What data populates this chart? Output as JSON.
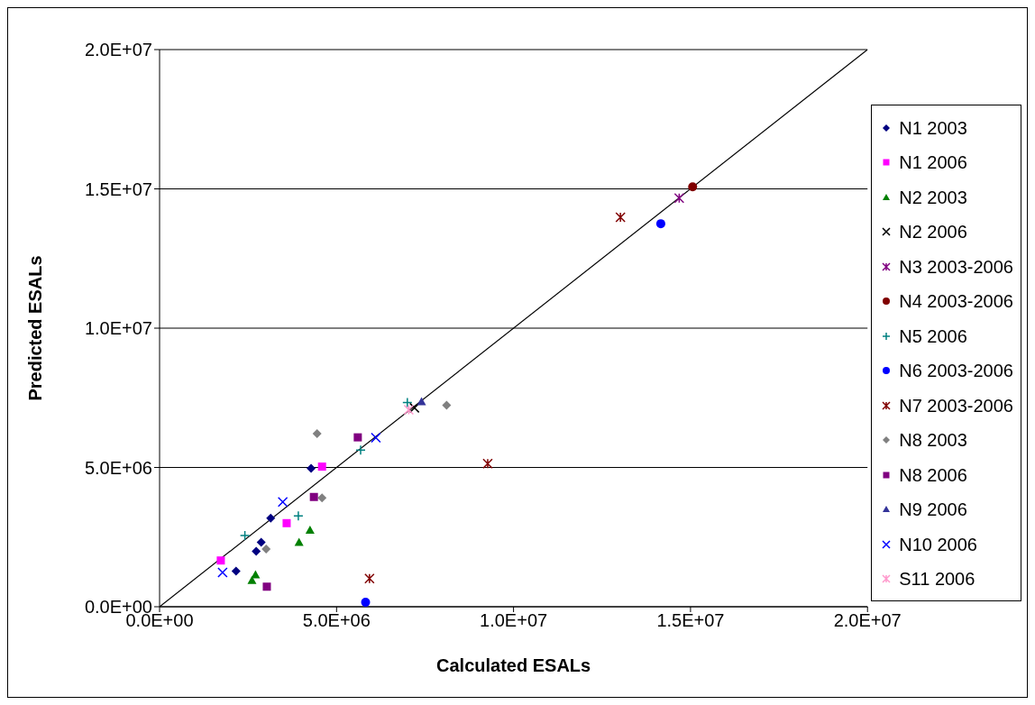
{
  "chart_data": {
    "type": "scatter",
    "xlabel": "Calculated ESALs",
    "ylabel": "Predicted ESALs",
    "xlim": [
      0,
      20000000
    ],
    "ylim": [
      0,
      20000000
    ],
    "xticks": [
      {
        "value": 0,
        "label": "0.0E+00"
      },
      {
        "value": 5000000,
        "label": "5.0E+06"
      },
      {
        "value": 10000000,
        "label": "1.0E+07"
      },
      {
        "value": 15000000,
        "label": "1.5E+07"
      },
      {
        "value": 20000000,
        "label": "2.0E+07"
      }
    ],
    "yticks": [
      {
        "value": 0,
        "label": "0.0E+00"
      },
      {
        "value": 5000000,
        "label": "5.0E+06"
      },
      {
        "value": 10000000,
        "label": "1.0E+07"
      },
      {
        "value": 15000000,
        "label": "1.5E+07"
      },
      {
        "value": 20000000,
        "label": "2.0E+07"
      }
    ],
    "grid": "y",
    "legend": "right",
    "series": [
      {
        "name": "N1 2003",
        "color": "#000080",
        "marker": "diamond",
        "x": [
          4280000,
          3140000,
          2870000,
          2730000,
          2160000
        ],
        "values": [
          4970000,
          3180000,
          2310000,
          1990000,
          1280000
        ]
      },
      {
        "name": "N1 2006",
        "color": "#ff00ff",
        "marker": "square",
        "x": [
          4590000,
          3590000,
          1730000
        ],
        "values": [
          5030000,
          3000000,
          1660000
        ]
      },
      {
        "name": "N2 2003",
        "color": "#008000",
        "marker": "triangle",
        "x": [
          4250000,
          3940000,
          2710000,
          2610000
        ],
        "values": [
          2750000,
          2310000,
          1150000,
          950000
        ]
      },
      {
        "name": "N2 2006",
        "color": "#000000",
        "marker": "x",
        "x": [
          7200000
        ],
        "values": [
          7140000
        ]
      },
      {
        "name": "N3 2003-2006",
        "color": "#800080",
        "marker": "cross",
        "x": [
          14680000
        ],
        "values": [
          14670000
        ]
      },
      {
        "name": "N4 2003-2006",
        "color": "#800000",
        "marker": "circle",
        "x": [
          15060000
        ],
        "values": [
          15070000
        ]
      },
      {
        "name": "N5 2006",
        "color": "#008080",
        "marker": "plus",
        "x": [
          5680000,
          3920000,
          2410000,
          7000000
        ],
        "values": [
          5620000,
          3260000,
          2560000,
          7330000
        ]
      },
      {
        "name": "N6 2003-2006",
        "color": "#0000ff",
        "marker": "circle",
        "x": [
          14160000,
          5820000
        ],
        "values": [
          13750000,
          160000
        ]
      },
      {
        "name": "N7 2003-2006",
        "color": "#800000",
        "marker": "cross",
        "x": [
          13020000,
          9270000,
          5930000
        ],
        "values": [
          13980000,
          5140000,
          1010000
        ]
      },
      {
        "name": "N8 2003",
        "color": "#808080",
        "marker": "diamond",
        "x": [
          4450000,
          8110000,
          4590000,
          3010000
        ],
        "values": [
          6210000,
          7230000,
          3910000,
          2070000
        ]
      },
      {
        "name": "N8 2006",
        "color": "#800080",
        "marker": "square",
        "x": [
          5600000,
          4360000,
          3030000
        ],
        "values": [
          6080000,
          3940000,
          720000
        ]
      },
      {
        "name": "N9 2006",
        "color": "#333399",
        "marker": "triangle",
        "x": [
          7400000
        ],
        "values": [
          7360000
        ]
      },
      {
        "name": "N10 2006",
        "color": "#0000ff",
        "marker": "x",
        "x": [
          6110000,
          3480000,
          1780000
        ],
        "values": [
          6070000,
          3760000,
          1230000
        ]
      },
      {
        "name": "S11 2006",
        "color": "#ff99cc",
        "marker": "cross",
        "x": [
          7040000
        ],
        "values": [
          7070000
        ]
      },
      {
        "type": "line",
        "color": "#000000",
        "marker": "none",
        "x": [
          0,
          20000000
        ],
        "values": [
          0,
          20000000
        ]
      }
    ]
  }
}
